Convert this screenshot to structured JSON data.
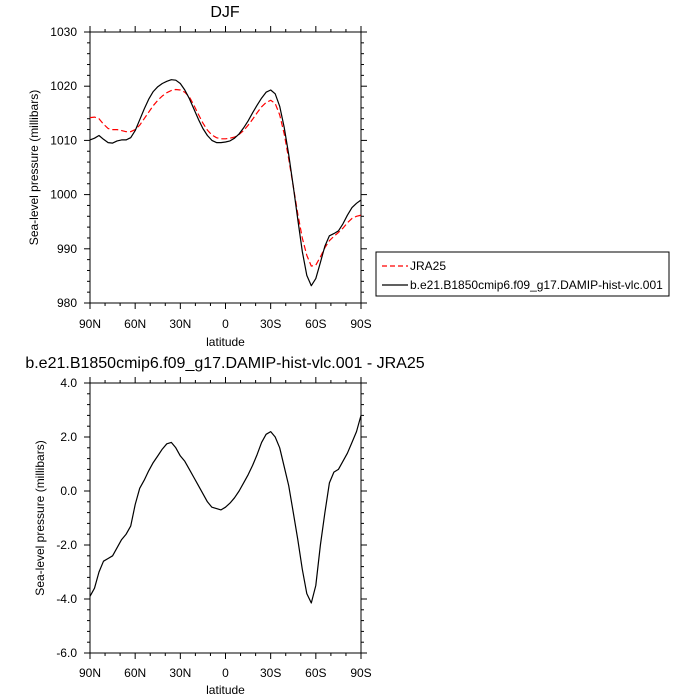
{
  "chart_data": [
    {
      "type": "line",
      "title": "DJF",
      "xlabel": "latitude",
      "ylabel": "Sea-level pressure (millibars)",
      "xlim": [
        90,
        -90
      ],
      "ylim": [
        980,
        1030
      ],
      "xticks": [
        {
          "value": 90,
          "label": "90N"
        },
        {
          "value": 60,
          "label": "60N"
        },
        {
          "value": 30,
          "label": "30N"
        },
        {
          "value": 0,
          "label": "0"
        },
        {
          "value": -30,
          "label": "30S"
        },
        {
          "value": -60,
          "label": "60S"
        },
        {
          "value": -90,
          "label": "90S"
        }
      ],
      "yticks": [
        "980",
        "990",
        "1000",
        "1010",
        "1020",
        "1030"
      ],
      "legend": "right",
      "series": [
        {
          "name": "JRA25",
          "color": "#ff0000",
          "dash": "dashed",
          "x": [
            90,
            87,
            84,
            81,
            78,
            75,
            72,
            69,
            66,
            63,
            60,
            57,
            54,
            51,
            48,
            45,
            42,
            39,
            36,
            33,
            30,
            27,
            24,
            21,
            18,
            15,
            12,
            9,
            6,
            3,
            0,
            -3,
            -6,
            -9,
            -12,
            -15,
            -18,
            -21,
            -24,
            -27,
            -30,
            -33,
            -36,
            -39,
            -42,
            -45,
            -48,
            -51,
            -54,
            -57,
            -60,
            -63,
            -66,
            -69,
            -72,
            -75,
            -78,
            -81,
            -84,
            -87,
            -90
          ],
          "values": [
            1014.2,
            1014.3,
            1014.0,
            1013.0,
            1012.2,
            1012.0,
            1012.0,
            1011.8,
            1011.6,
            1011.6,
            1012.0,
            1012.8,
            1014.0,
            1015.2,
            1016.4,
            1017.4,
            1018.2,
            1018.8,
            1019.2,
            1019.4,
            1019.3,
            1018.9,
            1018.0,
            1016.5,
            1014.8,
            1013.2,
            1011.9,
            1011.0,
            1010.5,
            1010.3,
            1010.3,
            1010.4,
            1010.6,
            1011.1,
            1011.8,
            1012.8,
            1013.9,
            1015.1,
            1016.2,
            1017.0,
            1017.4,
            1016.8,
            1014.7,
            1011.2,
            1006.6,
            1001.5,
            996.4,
            992.0,
            988.8,
            986.8,
            987.0,
            988.5,
            990.2,
            991.5,
            992.3,
            993.0,
            993.8,
            994.8,
            995.6,
            996.0,
            996.2
          ]
        },
        {
          "name": "b.e21.B1850cmip6.f09_g17.DAMIP-hist-vlc.001",
          "color": "#000000",
          "dash": "solid",
          "x": [
            90,
            87,
            84,
            81,
            78,
            75,
            72,
            69,
            66,
            63,
            60,
            57,
            54,
            51,
            48,
            45,
            42,
            39,
            36,
            33,
            30,
            27,
            24,
            21,
            18,
            15,
            12,
            9,
            6,
            3,
            0,
            -3,
            -6,
            -9,
            -12,
            -15,
            -18,
            -21,
            -24,
            -27,
            -30,
            -33,
            -36,
            -39,
            -42,
            -45,
            -48,
            -51,
            -54,
            -57,
            -60,
            -63,
            -66,
            -69,
            -72,
            -75,
            -78,
            -81,
            -84,
            -87,
            -90
          ],
          "values": [
            1010.1,
            1010.4,
            1010.9,
            1010.2,
            1009.6,
            1009.5,
            1009.9,
            1010.1,
            1010.1,
            1010.5,
            1011.8,
            1013.8,
            1015.8,
            1017.6,
            1019.0,
            1019.9,
            1020.5,
            1020.9,
            1021.2,
            1021.1,
            1020.5,
            1019.3,
            1017.7,
            1015.8,
            1013.9,
            1012.2,
            1010.9,
            1010.0,
            1009.6,
            1009.6,
            1009.7,
            1009.9,
            1010.4,
            1011.2,
            1012.3,
            1013.6,
            1015.1,
            1016.5,
            1017.8,
            1018.9,
            1019.3,
            1018.6,
            1016.3,
            1012.4,
            1007.4,
            1001.5,
            995.4,
            989.5,
            985.1,
            983.2,
            984.5,
            987.5,
            990.5,
            992.4,
            992.8,
            993.3,
            994.6,
            996.2,
            997.6,
            998.4,
            999.0
          ]
        }
      ]
    },
    {
      "type": "line",
      "title": "b.e21.B1850cmip6.f09_g17.DAMIP-hist-vlc.001 - JRA25",
      "xlabel": "latitude",
      "ylabel": "Sea-level pressure (millibars)",
      "xlim": [
        90,
        -90
      ],
      "ylim": [
        -6.0,
        4.0
      ],
      "xticks": [
        {
          "value": 90,
          "label": "90N"
        },
        {
          "value": 60,
          "label": "60N"
        },
        {
          "value": 30,
          "label": "30N"
        },
        {
          "value": 0,
          "label": "0"
        },
        {
          "value": -30,
          "label": "30S"
        },
        {
          "value": -60,
          "label": "60S"
        },
        {
          "value": -90,
          "label": "90S"
        }
      ],
      "yticks": [
        "-6.0",
        "-4.0",
        "-2.0",
        "0.0",
        "2.0",
        "4.0"
      ],
      "series": [
        {
          "color": "#000000",
          "dash": "solid",
          "x": [
            90,
            87,
            84,
            81,
            78,
            75,
            72,
            69,
            66,
            63,
            60,
            57,
            54,
            51,
            48,
            45,
            42,
            39,
            36,
            33,
            30,
            27,
            24,
            21,
            18,
            15,
            12,
            9,
            6,
            3,
            0,
            -3,
            -6,
            -9,
            -12,
            -15,
            -18,
            -21,
            -24,
            -27,
            -30,
            -33,
            -36,
            -39,
            -42,
            -45,
            -48,
            -51,
            -54,
            -57,
            -60,
            -63,
            -66,
            -69,
            -72,
            -75,
            -78,
            -81,
            -84,
            -87,
            -90
          ],
          "values": [
            -3.9,
            -3.6,
            -3.0,
            -2.6,
            -2.5,
            -2.4,
            -2.1,
            -1.8,
            -1.6,
            -1.3,
            -0.5,
            0.1,
            0.4,
            0.75,
            1.05,
            1.3,
            1.55,
            1.75,
            1.8,
            1.6,
            1.3,
            1.1,
            0.8,
            0.5,
            0.2,
            -0.1,
            -0.4,
            -0.6,
            -0.65,
            -0.7,
            -0.6,
            -0.45,
            -0.25,
            0.0,
            0.3,
            0.6,
            0.95,
            1.35,
            1.8,
            2.1,
            2.2,
            2.0,
            1.6,
            0.9,
            0.2,
            -0.8,
            -1.8,
            -2.9,
            -3.8,
            -4.15,
            -3.5,
            -2.0,
            -0.8,
            0.3,
            0.7,
            0.8,
            1.1,
            1.4,
            1.8,
            2.2,
            2.8
          ]
        }
      ]
    }
  ]
}
